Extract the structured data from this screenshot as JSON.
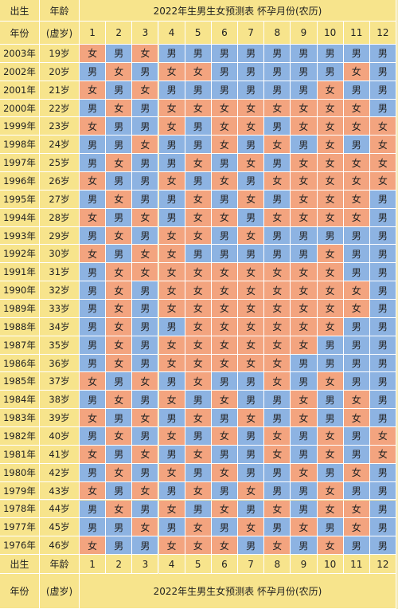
{
  "header": {
    "birth_label": "出生",
    "age_label": "年龄",
    "year_label": "年份",
    "virtual_age_label": "(虚岁)",
    "title": "2022年生男生女预测表  怀孕月份(农历)",
    "months": [
      "1",
      "2",
      "3",
      "4",
      "5",
      "6",
      "7",
      "8",
      "9",
      "10",
      "11",
      "12"
    ]
  },
  "colors": {
    "male": "#8db3e2",
    "female": "#f3a47f",
    "header": "#f7e48c"
  },
  "rows": [
    {
      "year": "2003年",
      "age": "19岁",
      "cells": [
        "女",
        "男",
        "女",
        "男",
        "男",
        "男",
        "男",
        "男",
        "男",
        "男",
        "男",
        "男"
      ]
    },
    {
      "year": "2002年",
      "age": "20岁",
      "cells": [
        "男",
        "女",
        "男",
        "女",
        "女",
        "男",
        "男",
        "男",
        "男",
        "男",
        "女",
        "男"
      ]
    },
    {
      "year": "2001年",
      "age": "21岁",
      "cells": [
        "女",
        "男",
        "女",
        "男",
        "男",
        "男",
        "男",
        "男",
        "男",
        "女",
        "男",
        "男"
      ]
    },
    {
      "year": "2000年",
      "age": "22岁",
      "cells": [
        "男",
        "女",
        "男",
        "女",
        "女",
        "女",
        "女",
        "女",
        "女",
        "女",
        "女",
        "男"
      ]
    },
    {
      "year": "1999年",
      "age": "23岁",
      "cells": [
        "女",
        "男",
        "男",
        "女",
        "男",
        "女",
        "女",
        "男",
        "女",
        "女",
        "女",
        "女"
      ]
    },
    {
      "year": "1998年",
      "age": "24岁",
      "cells": [
        "男",
        "男",
        "女",
        "男",
        "男",
        "女",
        "男",
        "女",
        "男",
        "女",
        "男",
        "女"
      ]
    },
    {
      "year": "1997年",
      "age": "25岁",
      "cells": [
        "男",
        "女",
        "男",
        "男",
        "女",
        "男",
        "女",
        "男",
        "女",
        "女",
        "女",
        "女"
      ]
    },
    {
      "year": "1996年",
      "age": "26岁",
      "cells": [
        "女",
        "男",
        "男",
        "女",
        "男",
        "女",
        "男",
        "女",
        "女",
        "女",
        "女",
        "女"
      ]
    },
    {
      "year": "1995年",
      "age": "27岁",
      "cells": [
        "男",
        "女",
        "男",
        "男",
        "女",
        "男",
        "女",
        "男",
        "女",
        "女",
        "女",
        "男"
      ]
    },
    {
      "year": "1994年",
      "age": "28岁",
      "cells": [
        "女",
        "男",
        "女",
        "男",
        "女",
        "女",
        "男",
        "女",
        "女",
        "女",
        "女",
        "男"
      ]
    },
    {
      "year": "1993年",
      "age": "29岁",
      "cells": [
        "男",
        "女",
        "男",
        "女",
        "女",
        "男",
        "女",
        "男",
        "男",
        "男",
        "男",
        "男"
      ]
    },
    {
      "year": "1992年",
      "age": "30岁",
      "cells": [
        "女",
        "男",
        "女",
        "女",
        "男",
        "男",
        "男",
        "男",
        "男",
        "女",
        "男",
        "男"
      ]
    },
    {
      "year": "1991年",
      "age": "31岁",
      "cells": [
        "男",
        "女",
        "女",
        "女",
        "女",
        "女",
        "女",
        "女",
        "女",
        "女",
        "男",
        "男"
      ]
    },
    {
      "year": "1990年",
      "age": "32岁",
      "cells": [
        "男",
        "女",
        "男",
        "女",
        "女",
        "女",
        "女",
        "女",
        "女",
        "女",
        "女",
        "男"
      ]
    },
    {
      "year": "1989年",
      "age": "33岁",
      "cells": [
        "男",
        "女",
        "男",
        "女",
        "女",
        "女",
        "女",
        "女",
        "女",
        "女",
        "女",
        "男"
      ]
    },
    {
      "year": "1988年",
      "age": "34岁",
      "cells": [
        "男",
        "女",
        "男",
        "男",
        "女",
        "女",
        "女",
        "女",
        "女",
        "女",
        "男",
        "男"
      ]
    },
    {
      "year": "1987年",
      "age": "35岁",
      "cells": [
        "男",
        "女",
        "男",
        "女",
        "女",
        "女",
        "女",
        "女",
        "女",
        "男",
        "男",
        "男"
      ]
    },
    {
      "year": "1986年",
      "age": "36岁",
      "cells": [
        "男",
        "女",
        "男",
        "女",
        "女",
        "女",
        "女",
        "女",
        "男",
        "男",
        "男",
        "男"
      ]
    },
    {
      "year": "1985年",
      "age": "37岁",
      "cells": [
        "女",
        "男",
        "女",
        "男",
        "女",
        "男",
        "男",
        "女",
        "男",
        "女",
        "男",
        "男"
      ]
    },
    {
      "year": "1984年",
      "age": "38岁",
      "cells": [
        "男",
        "女",
        "男",
        "女",
        "男",
        "女",
        "男",
        "男",
        "女",
        "男",
        "女",
        "男"
      ]
    },
    {
      "year": "1983年",
      "age": "39岁",
      "cells": [
        "女",
        "男",
        "女",
        "男",
        "女",
        "男",
        "女",
        "男",
        "女",
        "男",
        "女",
        "男"
      ]
    },
    {
      "year": "1982年",
      "age": "40岁",
      "cells": [
        "男",
        "女",
        "男",
        "女",
        "男",
        "女",
        "男",
        "女",
        "男",
        "女",
        "男",
        "女"
      ]
    },
    {
      "year": "1981年",
      "age": "41岁",
      "cells": [
        "女",
        "男",
        "女",
        "男",
        "女",
        "男",
        "男",
        "女",
        "男",
        "女",
        "男",
        "女"
      ]
    },
    {
      "year": "1980年",
      "age": "42岁",
      "cells": [
        "男",
        "女",
        "男",
        "女",
        "男",
        "女",
        "男",
        "男",
        "女",
        "男",
        "女",
        "男"
      ]
    },
    {
      "year": "1979年",
      "age": "43岁",
      "cells": [
        "女",
        "男",
        "女",
        "男",
        "女",
        "男",
        "女",
        "男",
        "男",
        "女",
        "男",
        "男"
      ]
    },
    {
      "year": "1978年",
      "age": "44岁",
      "cells": [
        "男",
        "女",
        "男",
        "女",
        "男",
        "女",
        "男",
        "女",
        "男",
        "女",
        "女",
        "男"
      ]
    },
    {
      "year": "1977年",
      "age": "45岁",
      "cells": [
        "男",
        "男",
        "女",
        "男",
        "女",
        "男",
        "女",
        "男",
        "女",
        "男",
        "女",
        "男"
      ]
    },
    {
      "year": "1976年",
      "age": "46岁",
      "cells": [
        "女",
        "男",
        "男",
        "女",
        "女",
        "女",
        "男",
        "女",
        "男",
        "女",
        "男",
        "男"
      ]
    }
  ]
}
